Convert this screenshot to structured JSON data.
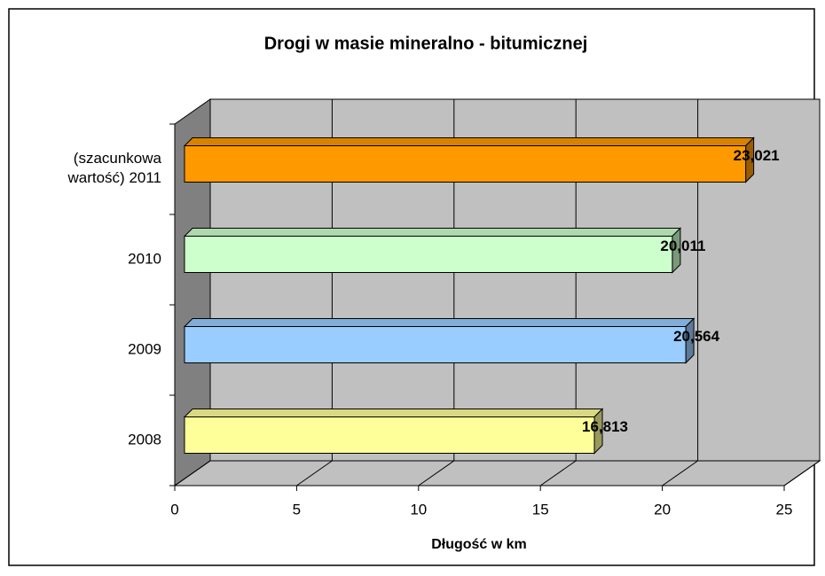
{
  "chart_data": {
    "type": "bar3d_horizontal",
    "title": "Drogi w masie mineralno - bitumicznej",
    "x_label": "Długość w km",
    "categories": [
      "2008",
      "2009",
      "2010",
      "(szacunkowa wartość) 2011"
    ],
    "values": [
      16.813,
      20.564,
      20.011,
      23.021
    ],
    "value_labels": [
      "16,813",
      "20,564",
      "20,011",
      "23,021"
    ],
    "colors": [
      "#ffff99",
      "#99ccff",
      "#ccffcc",
      "#ff9900"
    ],
    "xlim": [
      0,
      25
    ],
    "xticks": [
      0,
      5,
      10,
      15,
      20,
      25
    ],
    "grid": true
  }
}
